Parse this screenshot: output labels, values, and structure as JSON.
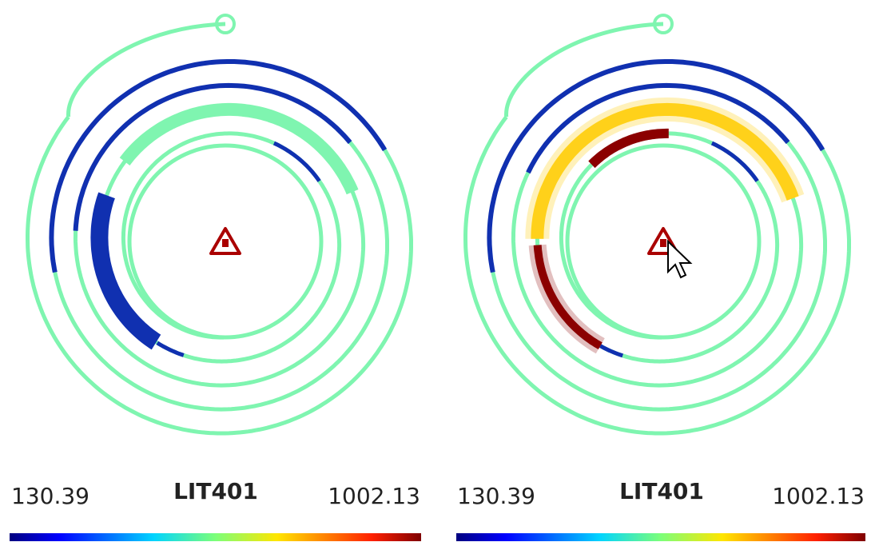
{
  "panels": [
    {
      "colorbar": {
        "min": 130.39,
        "title": "LIT401",
        "max": 1002.13
      }
    },
    {
      "colorbar": {
        "min": 130.39,
        "title": "LIT401",
        "max": 1002.13
      }
    }
  ]
}
